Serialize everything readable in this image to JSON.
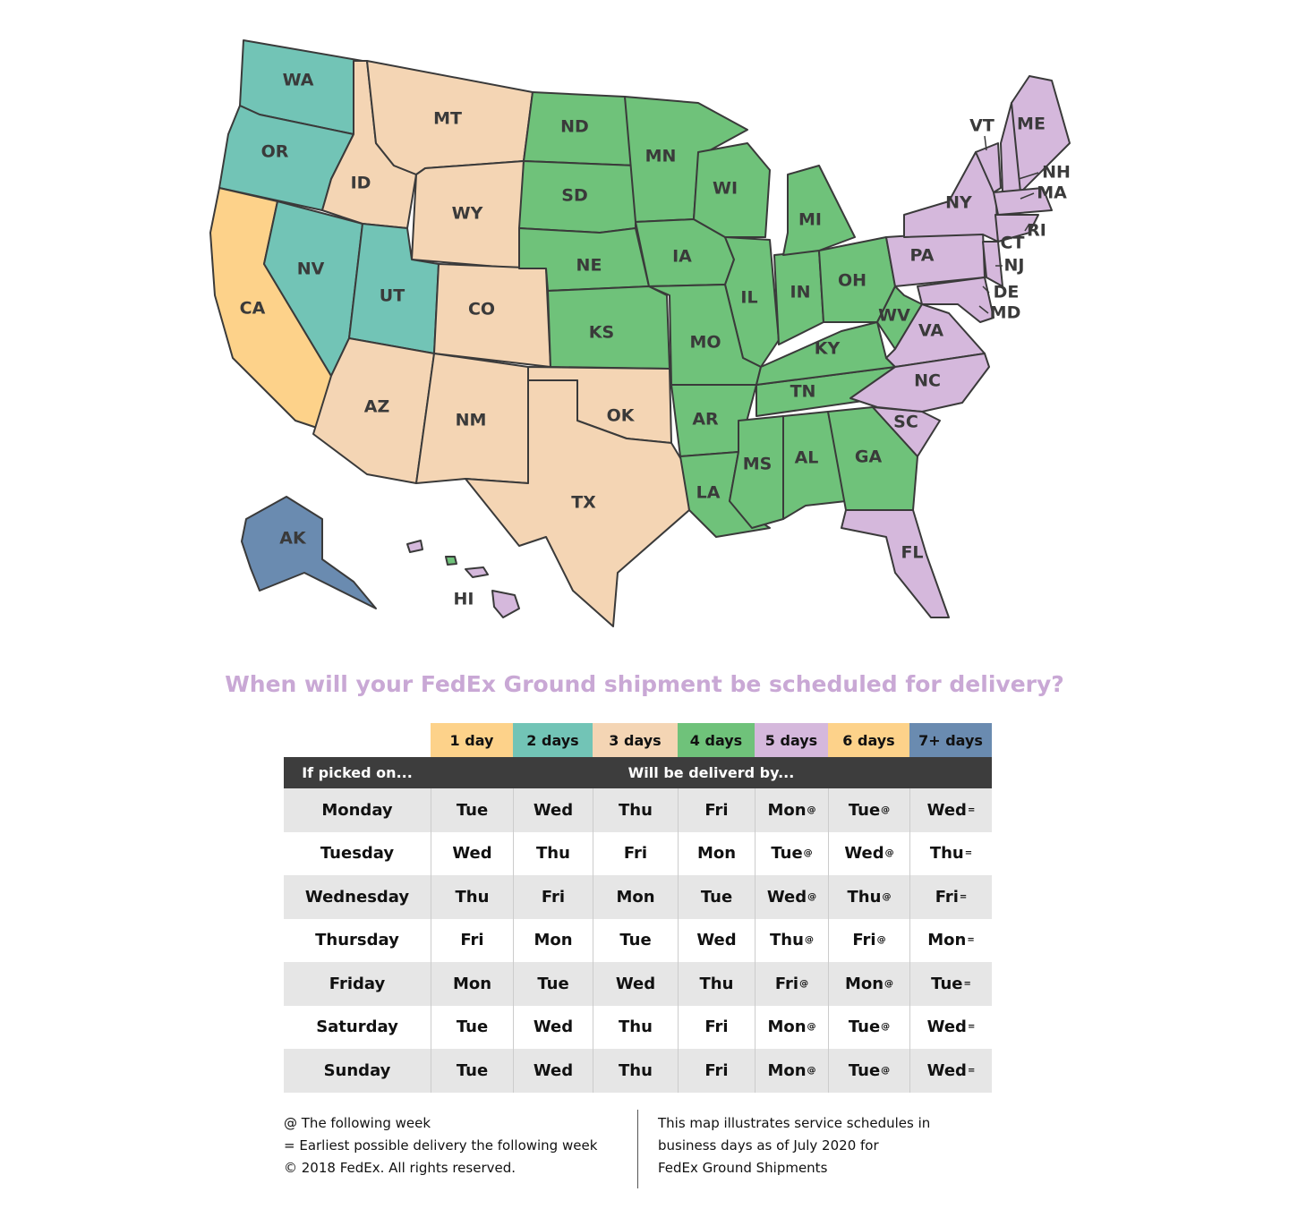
{
  "map": {
    "state_labels": [
      "WA",
      "OR",
      "MT",
      "ND",
      "MN",
      "WI",
      "MI",
      "ID",
      "WY",
      "SD",
      "IA",
      "NE",
      "NV",
      "UT",
      "CO",
      "CA",
      "KS",
      "MO",
      "IL",
      "IN",
      "OH",
      "KY",
      "WV",
      "TN",
      "AR",
      "OK",
      "AZ",
      "NM",
      "TX",
      "LA",
      "MS",
      "AL",
      "GA",
      "SC",
      "NC",
      "VA",
      "PA",
      "NY",
      "VT",
      "ME",
      "NH",
      "MA",
      "RI",
      "CT",
      "NJ",
      "DE",
      "MD",
      "FL",
      "AK",
      "HI"
    ]
  },
  "title": "When will your FedEx Ground shipment be scheduled for delivery?",
  "table": {
    "zones": [
      "1 day",
      "2 days",
      "3 days",
      "4 days",
      "5 days",
      "6 days",
      "7+ days"
    ],
    "header_left": "If picked on...",
    "header_right": "Will be deliverd by...",
    "rows": [
      {
        "day": "Monday",
        "cells": [
          {
            "text": "Tue"
          },
          {
            "text": "Wed"
          },
          {
            "text": "Thu"
          },
          {
            "text": "Fri"
          },
          {
            "text": "Mon",
            "sup": "@"
          },
          {
            "text": "Tue",
            "sup": "@"
          },
          {
            "text": "Wed",
            "sup": "="
          }
        ]
      },
      {
        "day": "Tuesday",
        "cells": [
          {
            "text": "Wed"
          },
          {
            "text": "Thu"
          },
          {
            "text": "Fri"
          },
          {
            "text": "Mon"
          },
          {
            "text": "Tue",
            "sup": "@"
          },
          {
            "text": "Wed",
            "sup": "@"
          },
          {
            "text": "Thu",
            "sup": "="
          }
        ]
      },
      {
        "day": "Wednesday",
        "cells": [
          {
            "text": "Thu"
          },
          {
            "text": "Fri"
          },
          {
            "text": "Mon"
          },
          {
            "text": "Tue"
          },
          {
            "text": "Wed",
            "sup": "@"
          },
          {
            "text": "Thu",
            "sup": "@"
          },
          {
            "text": "Fri",
            "sup": "="
          }
        ]
      },
      {
        "day": "Thursday",
        "cells": [
          {
            "text": "Fri"
          },
          {
            "text": "Mon"
          },
          {
            "text": "Tue"
          },
          {
            "text": "Wed"
          },
          {
            "text": "Thu",
            "sup": "@"
          },
          {
            "text": "Fri",
            "sup": "@"
          },
          {
            "text": "Mon",
            "sup": "="
          }
        ]
      },
      {
        "day": "Friday",
        "cells": [
          {
            "text": "Mon"
          },
          {
            "text": "Tue"
          },
          {
            "text": "Wed"
          },
          {
            "text": "Thu"
          },
          {
            "text": "Fri",
            "sup": "@"
          },
          {
            "text": "Mon",
            "sup": "@"
          },
          {
            "text": "Tue",
            "sup": "="
          }
        ]
      },
      {
        "day": "Saturday",
        "cells": [
          {
            "text": "Tue"
          },
          {
            "text": "Wed"
          },
          {
            "text": "Thu"
          },
          {
            "text": "Fri"
          },
          {
            "text": "Mon",
            "sup": "@"
          },
          {
            "text": "Tue",
            "sup": "@"
          },
          {
            "text": "Wed",
            "sup": "="
          }
        ]
      },
      {
        "day": "Sunday",
        "cells": [
          {
            "text": "Tue"
          },
          {
            "text": "Wed"
          },
          {
            "text": "Thu"
          },
          {
            "text": "Fri"
          },
          {
            "text": "Mon",
            "sup": "@"
          },
          {
            "text": "Tue",
            "sup": "@"
          },
          {
            "text": "Wed",
            "sup": "="
          }
        ]
      }
    ]
  },
  "footer": {
    "left": [
      "@ The following week",
      "= Earliest possible delivery the following week",
      "© 2018 FedEx. All rights reserved."
    ],
    "right": [
      "This map illustrates service schedules in",
      "business days as of July 2020 for",
      "FedEx Ground Shipments"
    ]
  }
}
